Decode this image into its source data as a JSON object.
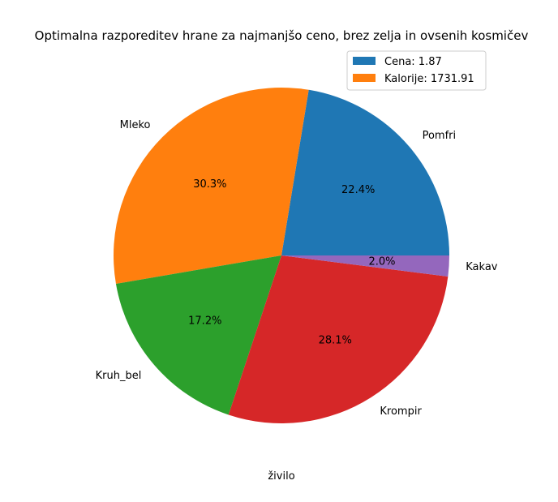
{
  "chart_data": {
    "type": "pie",
    "title": "Optimalna razporeditev hrane za najmanjšo ceno, brez zelja in ovsenih kosmičev",
    "xlabel": "živilo",
    "slices": [
      {
        "label": "Pomfri",
        "value": 22.4,
        "pct_label": "22.4%",
        "color": "#1f77b4"
      },
      {
        "label": "Mleko",
        "value": 30.3,
        "pct_label": "30.3%",
        "color": "#ff7f0e"
      },
      {
        "label": "Kruh_bel",
        "value": 17.2,
        "pct_label": "17.2%",
        "color": "#2ca02c"
      },
      {
        "label": "Krompir",
        "value": 28.1,
        "pct_label": "28.1%",
        "color": "#d62728"
      },
      {
        "label": "Kakav",
        "value": 2.0,
        "pct_label": "2.0%",
        "color": "#9467bd"
      }
    ],
    "legend": {
      "placement": "top-right",
      "entries": [
        {
          "label": "Cena: 1.87",
          "color": "#1f77b4"
        },
        {
          "label": "Kalorije: 1731.91",
          "color": "#ff7f0e"
        }
      ]
    }
  }
}
